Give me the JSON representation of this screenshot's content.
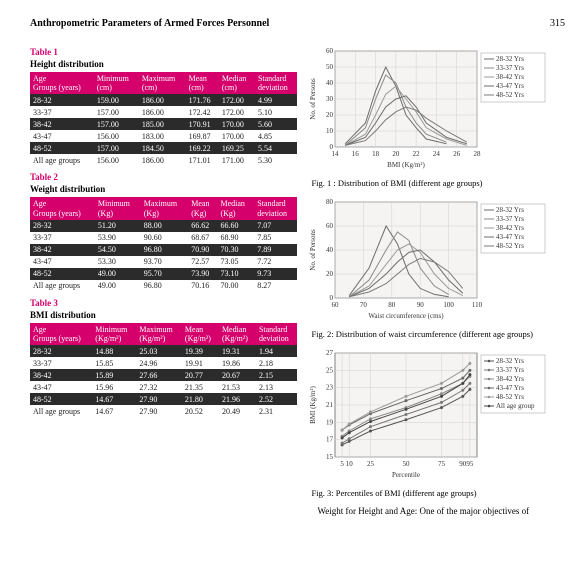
{
  "header": {
    "title": "Anthropometric Parameters of Armed Forces Personnel",
    "page": "315"
  },
  "tables": {
    "t1": {
      "label": "Table 1",
      "caption": "Height distribution",
      "cols": [
        "Age Groups (years)",
        "Minimum (cm)",
        "Maximum (cm)",
        "Mean (cm)",
        "Median (cm)",
        "Standard deviation"
      ],
      "rows": [
        [
          "28-32",
          "159.00",
          "186.00",
          "171.76",
          "172.00",
          "4.99"
        ],
        [
          "33-37",
          "157.00",
          "186.00",
          "172.42",
          "172.00",
          "5.10"
        ],
        [
          "38-42",
          "157.00",
          "185.00",
          "170.91",
          "170.00",
          "5.60"
        ],
        [
          "43-47",
          "156.00",
          "183.00",
          "169.87",
          "170.00",
          "4.85"
        ],
        [
          "48-52",
          "157.00",
          "184.50",
          "169.22",
          "169.25",
          "5.54"
        ],
        [
          "All age groups",
          "156.00",
          "186.00",
          "171.01",
          "171.00",
          "5.30"
        ]
      ]
    },
    "t2": {
      "label": "Table 2",
      "caption": "Weight distribution",
      "cols": [
        "Age Groups (years)",
        "Minimum (Kg)",
        "Maximum (Kg)",
        "Mean (Kg)",
        "Median (Kg)",
        "Standard deviation"
      ],
      "rows": [
        [
          "28-32",
          "51.20",
          "88.00",
          "66.62",
          "66.60",
          "7.07"
        ],
        [
          "33-37",
          "53.90",
          "90.60",
          "68.67",
          "68.90",
          "7.85"
        ],
        [
          "38-42",
          "54.50",
          "96.80",
          "70.90",
          "70.30",
          "7.89"
        ],
        [
          "43-47",
          "53.30",
          "93.70",
          "72.57",
          "73.05",
          "7.72"
        ],
        [
          "48-52",
          "49.00",
          "95.70",
          "73.90",
          "73.10",
          "9.73"
        ],
        [
          "All age groups",
          "49.00",
          "96.80",
          "70.16",
          "70.00",
          "8.27"
        ]
      ]
    },
    "t3": {
      "label": "Table 3",
      "caption": "BMI distribution",
      "cols": [
        "Age Groups (years)",
        "Minimum (Kg/m²)",
        "Maximum (Kg/m²)",
        "Mean (Kg/m²)",
        "Median (Kg/m²)",
        "Standard deviation"
      ],
      "rows": [
        [
          "28-32",
          "14.88",
          "25.03",
          "19.39",
          "19.31",
          "1.94"
        ],
        [
          "33-37",
          "15.85",
          "24.96",
          "19.91",
          "19.86",
          "2.18"
        ],
        [
          "38-42",
          "15.89",
          "27.66",
          "20.77",
          "20.67",
          "2.15"
        ],
        [
          "43-47",
          "15.96",
          "27.32",
          "21.35",
          "21.53",
          "2.13"
        ],
        [
          "48-52",
          "14.67",
          "27.90",
          "21.80",
          "21.96",
          "2.52"
        ],
        [
          "All age groups",
          "14.67",
          "27.90",
          "20.52",
          "20.49",
          "2.31"
        ]
      ]
    }
  },
  "charts": {
    "fig1": {
      "type": "line",
      "title": "Fig. 1 :  Distribution of BMI (different age groups)",
      "xlabel": "BMI (Kg/m²)",
      "ylabel": "No. of Persons",
      "xlim": [
        14,
        28
      ],
      "xticks": [
        14,
        16,
        18,
        20,
        22,
        24,
        26,
        28
      ],
      "ylim": [
        0,
        60
      ],
      "yticks": [
        0,
        10,
        20,
        30,
        40,
        50,
        60
      ],
      "series": [
        "28-32 Yrs",
        "33-37 Yrs",
        "38-42 Yrs",
        "43-47 Yrs",
        "48-52 Yrs"
      ],
      "colors": [
        "#6b6b6b",
        "#8a8a8a",
        "#9a9a9a",
        "#6b6b6b",
        "#7a7a7a"
      ],
      "lines": [
        {
          "x": [
            15,
            17,
            18,
            19,
            20,
            21,
            22,
            23,
            25
          ],
          "y": [
            2,
            15,
            35,
            50,
            38,
            20,
            12,
            5,
            2
          ]
        },
        {
          "x": [
            15,
            17,
            18,
            19,
            20,
            21,
            22,
            23,
            25
          ],
          "y": [
            1,
            12,
            30,
            45,
            40,
            25,
            15,
            8,
            3
          ]
        },
        {
          "x": [
            15,
            17,
            18,
            19,
            20,
            21,
            22,
            23,
            25,
            27
          ],
          "y": [
            1,
            8,
            20,
            33,
            38,
            30,
            22,
            12,
            5,
            1
          ]
        },
        {
          "x": [
            15,
            17,
            18,
            19,
            20,
            21,
            22,
            23,
            25,
            27
          ],
          "y": [
            1,
            6,
            15,
            25,
            30,
            32,
            25,
            15,
            6,
            2
          ]
        },
        {
          "x": [
            15,
            17,
            18,
            19,
            20,
            21,
            22,
            23,
            25,
            27
          ],
          "y": [
            1,
            4,
            10,
            17,
            22,
            25,
            23,
            18,
            10,
            3
          ]
        }
      ],
      "bg": "#f5f4f2",
      "grid": "#d0d0d0",
      "axis": "#333",
      "font": 7,
      "legend_font": 7
    },
    "fig2": {
      "type": "line",
      "title": "Fig. 2:   Distribution of waist circumference (different age groups)",
      "xlabel": "Waist circumference (cms)",
      "ylabel": "No. of Persons",
      "xlim": [
        60,
        110
      ],
      "xticks": [
        60,
        70,
        80,
        90,
        100,
        110
      ],
      "ylim": [
        0,
        80
      ],
      "yticks": [
        0,
        20,
        40,
        60,
        80
      ],
      "series": [
        "28-32 Yrs",
        "33-37 Yrs",
        "38-42 Yrs",
        "43-47 Yrs",
        "48-52 Yrs"
      ],
      "colors": [
        "#6b6b6b",
        "#8a8a8a",
        "#9a9a9a",
        "#6b6b6b",
        "#7a7a7a"
      ],
      "lines": [
        {
          "x": [
            65,
            72,
            78,
            82,
            86,
            90,
            95,
            100
          ],
          "y": [
            2,
            25,
            60,
            45,
            20,
            8,
            3,
            1
          ]
        },
        {
          "x": [
            65,
            72,
            78,
            82,
            86,
            90,
            95,
            100
          ],
          "y": [
            1,
            15,
            40,
            55,
            48,
            25,
            10,
            3
          ]
        },
        {
          "x": [
            65,
            72,
            78,
            82,
            86,
            90,
            95,
            100,
            105
          ],
          "y": [
            1,
            10,
            28,
            40,
            45,
            38,
            20,
            8,
            2
          ]
        },
        {
          "x": [
            65,
            72,
            78,
            82,
            86,
            90,
            95,
            100,
            105
          ],
          "y": [
            1,
            8,
            20,
            30,
            38,
            40,
            30,
            15,
            4
          ]
        },
        {
          "x": [
            65,
            72,
            78,
            82,
            86,
            90,
            95,
            100,
            105
          ],
          "y": [
            1,
            5,
            12,
            20,
            28,
            33,
            30,
            22,
            8
          ]
        }
      ],
      "bg": "#f5f4f2",
      "grid": "#d0d0d0",
      "axis": "#333",
      "font": 7,
      "legend_font": 7
    },
    "fig3": {
      "type": "scatterline",
      "title": "Fig. 3:  Percentiles of BMI (different age groups)",
      "xlabel": "Percentile",
      "ylabel": "BMI (Kg/m²)",
      "xlim": [
        0,
        100
      ],
      "xticks": [
        5,
        10,
        25,
        50,
        75,
        90,
        95
      ],
      "ylim": [
        15,
        27
      ],
      "yticks": [
        15.0,
        17.0,
        19.0,
        21.0,
        23.0,
        25.0,
        27.0
      ],
      "series": [
        "28-32 Yrs",
        "33-37 Yrs",
        "38-42 Yrs",
        "43-47 Yrs",
        "48-52 Yrs",
        "All age group"
      ],
      "colors": [
        "#555",
        "#777",
        "#888",
        "#666",
        "#999",
        "#444"
      ],
      "markers": [
        "diamond",
        "square",
        "triangle",
        "cross",
        "star",
        "circle"
      ],
      "lines": [
        {
          "x": [
            5,
            10,
            25,
            50,
            75,
            90,
            95
          ],
          "y": [
            16.4,
            16.8,
            18.0,
            19.3,
            20.7,
            22.0,
            22.8
          ]
        },
        {
          "x": [
            5,
            10,
            25,
            50,
            75,
            90,
            95
          ],
          "y": [
            16.6,
            17.1,
            18.5,
            19.9,
            21.3,
            22.7,
            23.5
          ]
        },
        {
          "x": [
            5,
            10,
            25,
            50,
            75,
            90,
            95
          ],
          "y": [
            17.4,
            18.0,
            19.4,
            20.7,
            22.3,
            23.5,
            24.3
          ]
        },
        {
          "x": [
            5,
            10,
            25,
            50,
            75,
            90,
            95
          ],
          "y": [
            18.1,
            18.7,
            20.0,
            21.5,
            22.9,
            24.1,
            25.0
          ]
        },
        {
          "x": [
            5,
            10,
            25,
            50,
            75,
            90,
            95
          ],
          "y": [
            18.1,
            18.8,
            20.2,
            22.0,
            23.5,
            25.0,
            25.8
          ]
        },
        {
          "x": [
            5,
            10,
            25,
            50,
            75,
            90,
            95
          ],
          "y": [
            17.2,
            17.8,
            19.1,
            20.5,
            22.0,
            23.5,
            24.5
          ]
        }
      ],
      "bg": "#f5f4f2",
      "grid": "#d0d0d0",
      "axis": "#333",
      "font": 7,
      "legend_font": 7
    }
  },
  "bodytext": "Weight for Height and Age: One of the major objectives of"
}
